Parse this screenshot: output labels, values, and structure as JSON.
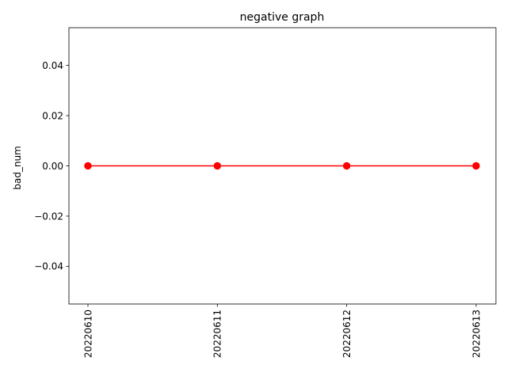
{
  "chart_data": {
    "type": "line",
    "title": "negative graph",
    "xlabel": "",
    "ylabel": "bad_num",
    "categories": [
      "20220610",
      "20220611",
      "20220612",
      "20220613"
    ],
    "series": [
      {
        "values": [
          0,
          0,
          0,
          0
        ],
        "color": "#ff0000",
        "marker": "circle"
      }
    ],
    "ylim": [
      -0.055,
      0.055
    ],
    "yticks": [
      -0.04,
      -0.02,
      0.0,
      0.02,
      0.04
    ],
    "ytick_labels": [
      "−0.04",
      "−0.02",
      "0.00",
      "0.02",
      "0.04"
    ],
    "grid": false,
    "legend": "none"
  }
}
